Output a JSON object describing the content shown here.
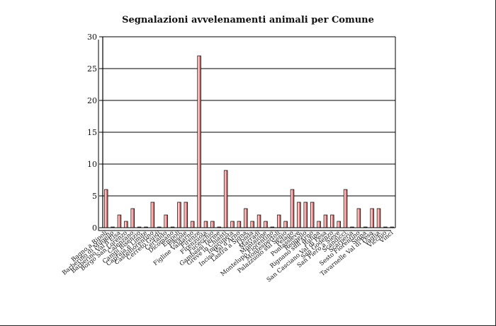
{
  "chart_data": {
    "type": "bar",
    "title": "Segnalazioni avvelenamenti animali per Comune",
    "xlabel": "",
    "ylabel": "",
    "ylim": [
      0,
      30
    ],
    "yticks": [
      0,
      5,
      10,
      15,
      20,
      25,
      30
    ],
    "grid": true,
    "bar_color": "#d42a2a",
    "categories": [
      "Bagno a Ripoli",
      "Barberino di Mugello",
      "Barberino Val d'Elsa",
      "Borgo San Lorenzo",
      "Calenzano",
      "Campi Bisenzio",
      "Capraia e Limite",
      "Castelfiorentino",
      "Cerreto Guidi",
      "Certaldo",
      "Dicomano",
      "Empoli",
      "Fiesole",
      "Figline Valdarno",
      "Firenze",
      "Firenzuola",
      "Fucecchio",
      "Gambassi Terme",
      "Greve in Chianti",
      "Impruneta",
      "Incisa Val d'Arno",
      "Lastra a Signa",
      "Londa",
      "Marradi",
      "Montaione",
      "Montelupo Fiorentino",
      "Montespertoli",
      "Palazzuolo sul Senio",
      "Pelago",
      "Pontassieve",
      "Reggello",
      "Rignano sull'Arno",
      "Rufina",
      "San Casciano Val di Pesa",
      "San Godenzo",
      "San Piero a Sieve",
      "Scandicci",
      "Scarperia",
      "Sesto Fiorentino",
      "Signa",
      "Tavarnelle Val di Pesa",
      "Vaglia",
      "Vicchio",
      "Vinci"
    ],
    "values": [
      6,
      0,
      2,
      1,
      3,
      0,
      0,
      4,
      0,
      2,
      0,
      4,
      4,
      1,
      27,
      1,
      1,
      0,
      9,
      1,
      1,
      3,
      1,
      2,
      1,
      0,
      2,
      1,
      6,
      4,
      4,
      4,
      1,
      2,
      2,
      1,
      6,
      0,
      3,
      0,
      3,
      3,
      0,
      0
    ]
  }
}
